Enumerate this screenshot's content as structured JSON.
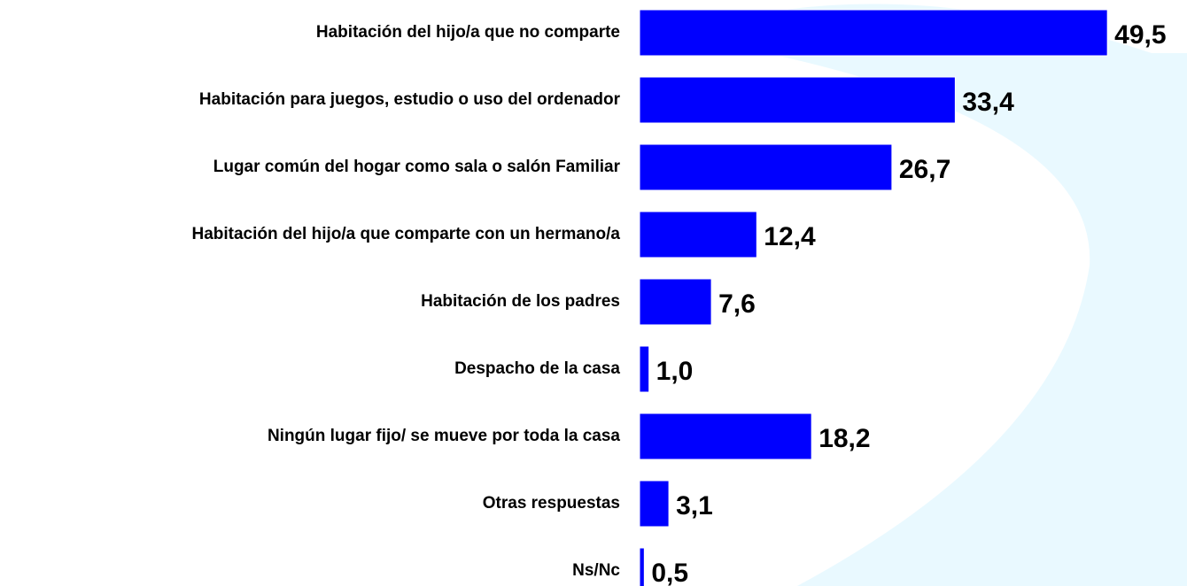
{
  "chart_data": {
    "type": "bar",
    "orientation": "horizontal",
    "categories": [
      "Habitación del hijo/a que no comparte",
      "Habitación para juegos, estudio o uso del ordenador",
      "Lugar común del hogar como sala o salón Familiar",
      "Habitación del hijo/a que comparte con un hermano/a",
      "Habitación de los padres",
      "Despacho de la casa",
      "Ningún lugar fijo/ se mueve por toda la casa",
      "Otras respuestas",
      "Ns/Nc"
    ],
    "values": [
      49.5,
      33.4,
      26.7,
      12.4,
      7.6,
      1.0,
      18.2,
      3.1,
      0.5
    ],
    "value_labels": [
      "49,5",
      "33,4",
      "26,7",
      "12,4",
      "7,6",
      "1,0",
      "18,2",
      "3,1",
      "0,5"
    ],
    "color": "#0000ff"
  }
}
